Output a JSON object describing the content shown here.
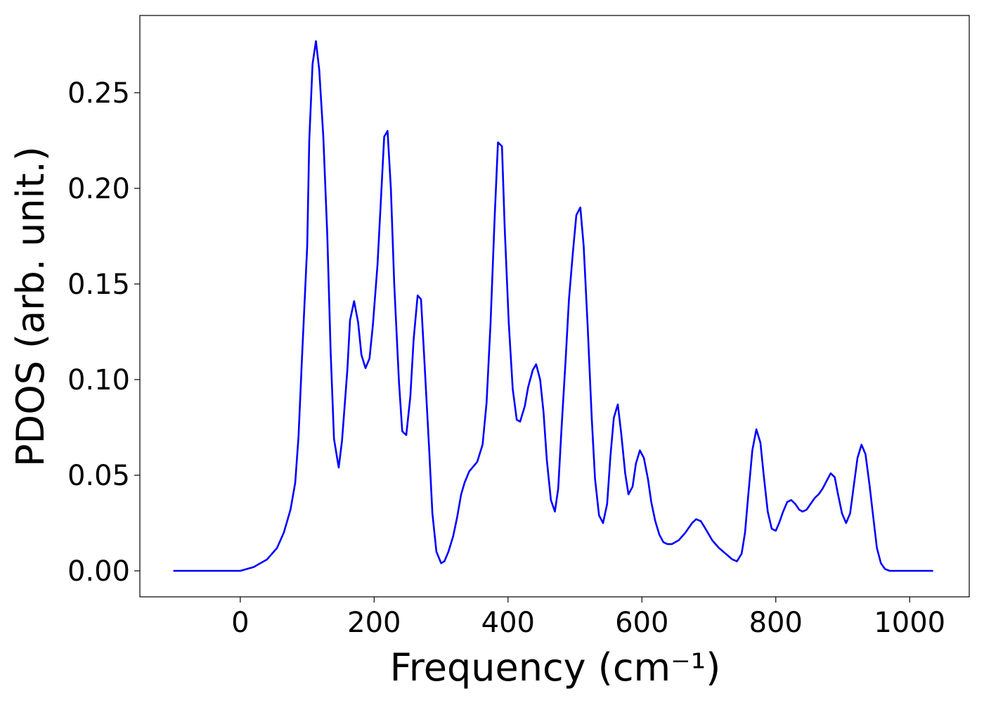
{
  "chart_data": {
    "type": "line",
    "xlabel": "Frequency (cm⁻¹)",
    "ylabel": "PDOS (arb. unit.)",
    "color": "#0000ff",
    "xlim": [
      -150,
      1089
    ],
    "ylim": [
      -0.0136,
      0.2904
    ],
    "xticks": [
      0,
      200,
      400,
      600,
      800,
      1000
    ],
    "yticks": [
      {
        "value": 0,
        "label": "0.00"
      },
      {
        "value": 0.05,
        "label": "0.05"
      },
      {
        "value": 0.1,
        "label": "0.10"
      },
      {
        "value": 0.15,
        "label": "0.15"
      },
      {
        "value": 0.2,
        "label": "0.20"
      },
      {
        "value": 0.25,
        "label": "0.25"
      }
    ],
    "x": [
      -100,
      0,
      20,
      40,
      55,
      65,
      75,
      82,
      87,
      92,
      100,
      103,
      108,
      113,
      118,
      124,
      130,
      135,
      140,
      147,
      152,
      160,
      164,
      170,
      176,
      181,
      187,
      193,
      198,
      205,
      211,
      215,
      220,
      225,
      230,
      237,
      242,
      248,
      254,
      259,
      265,
      270,
      275,
      282,
      287,
      293,
      300,
      305,
      311,
      318,
      324,
      330,
      335,
      342,
      354,
      362,
      368,
      374,
      380,
      385,
      391,
      395,
      401,
      407,
      413,
      418,
      425,
      430,
      437,
      442,
      448,
      453,
      458,
      464,
      470,
      475,
      480,
      486,
      491,
      497,
      502,
      508,
      513,
      519,
      525,
      530,
      536,
      542,
      548,
      553,
      558,
      564,
      569,
      575,
      580,
      586,
      591,
      597,
      603,
      609,
      614,
      620,
      626,
      632,
      638,
      645,
      655,
      665,
      675,
      681,
      688,
      695,
      705,
      715,
      725,
      735,
      742,
      749,
      754,
      759,
      765,
      771,
      777,
      782,
      788,
      794,
      800,
      805,
      811,
      817,
      823,
      829,
      835,
      840,
      846,
      852,
      858,
      864,
      870,
      876,
      882,
      888,
      893,
      899,
      905,
      911,
      916,
      922,
      928,
      934,
      940,
      946,
      951,
      957,
      963,
      970,
      1035
    ],
    "values": [
      0,
      0,
      0.002,
      0.006,
      0.012,
      0.02,
      0.032,
      0.046,
      0.07,
      0.11,
      0.17,
      0.225,
      0.265,
      0.277,
      0.262,
      0.227,
      0.175,
      0.115,
      0.069,
      0.054,
      0.068,
      0.105,
      0.131,
      0.141,
      0.13,
      0.113,
      0.106,
      0.111,
      0.128,
      0.16,
      0.2,
      0.227,
      0.23,
      0.2,
      0.15,
      0.099,
      0.073,
      0.071,
      0.091,
      0.121,
      0.144,
      0.142,
      0.11,
      0.065,
      0.03,
      0.01,
      0.004,
      0.005,
      0.01,
      0.018,
      0.028,
      0.04,
      0.046,
      0.052,
      0.057,
      0.066,
      0.088,
      0.13,
      0.185,
      0.224,
      0.222,
      0.18,
      0.13,
      0.095,
      0.079,
      0.078,
      0.086,
      0.096,
      0.105,
      0.108,
      0.1,
      0.083,
      0.058,
      0.037,
      0.031,
      0.043,
      0.075,
      0.11,
      0.142,
      0.167,
      0.186,
      0.19,
      0.17,
      0.128,
      0.08,
      0.048,
      0.029,
      0.025,
      0.035,
      0.06,
      0.08,
      0.087,
      0.072,
      0.051,
      0.04,
      0.044,
      0.056,
      0.063,
      0.059,
      0.048,
      0.036,
      0.026,
      0.019,
      0.015,
      0.014,
      0.014,
      0.016,
      0.02,
      0.025,
      0.027,
      0.026,
      0.022,
      0.016,
      0.012,
      0.009,
      0.006,
      0.005,
      0.009,
      0.02,
      0.04,
      0.063,
      0.074,
      0.067,
      0.05,
      0.031,
      0.022,
      0.021,
      0.025,
      0.031,
      0.036,
      0.037,
      0.035,
      0.032,
      0.031,
      0.032,
      0.035,
      0.038,
      0.04,
      0.043,
      0.047,
      0.051,
      0.049,
      0.04,
      0.03,
      0.025,
      0.03,
      0.043,
      0.059,
      0.066,
      0.061,
      0.045,
      0.027,
      0.012,
      0.004,
      0.001,
      0,
      0
    ]
  }
}
